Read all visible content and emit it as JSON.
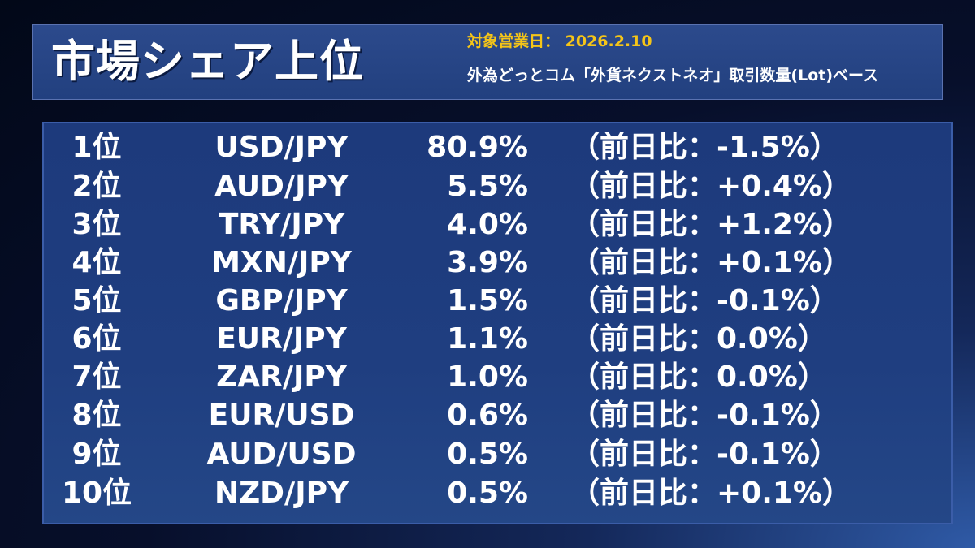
{
  "header": {
    "title": "市場シェア上位",
    "date_line": "対象営業日： 2026.2.10",
    "basis_line": "外為どっとコム「外貨ネクストネオ」取引数量(Lot)ベース"
  },
  "colors": {
    "accent": "#f5c518",
    "header_bg": "#25438a",
    "panel_bg": "#1f3e80",
    "text": "#ffffff"
  },
  "rankings": [
    {
      "rank": "1位",
      "pair": "USD/JPY",
      "share": "80.9%",
      "change": "（前日比：-1.5%）"
    },
    {
      "rank": "2位",
      "pair": "AUD/JPY",
      "share": "5.5%",
      "change": "（前日比：+0.4%）"
    },
    {
      "rank": "3位",
      "pair": "TRY/JPY",
      "share": "4.0%",
      "change": "（前日比：+1.2%）"
    },
    {
      "rank": "4位",
      "pair": "MXN/JPY",
      "share": "3.9%",
      "change": "（前日比：+0.1%）"
    },
    {
      "rank": "5位",
      "pair": "GBP/JPY",
      "share": "1.5%",
      "change": "（前日比：-0.1%）"
    },
    {
      "rank": "6位",
      "pair": "EUR/JPY",
      "share": "1.1%",
      "change": "（前日比：0.0%）"
    },
    {
      "rank": "7位",
      "pair": "ZAR/JPY",
      "share": "1.0%",
      "change": "（前日比：0.0%）"
    },
    {
      "rank": "8位",
      "pair": "EUR/USD",
      "share": "0.6%",
      "change": "（前日比：-0.1%）"
    },
    {
      "rank": "9位",
      "pair": "AUD/USD",
      "share": "0.5%",
      "change": "（前日比：-0.1%）"
    },
    {
      "rank": "10位",
      "pair": "NZD/JPY",
      "share": "0.5%",
      "change": "（前日比：+0.1%）"
    }
  ]
}
